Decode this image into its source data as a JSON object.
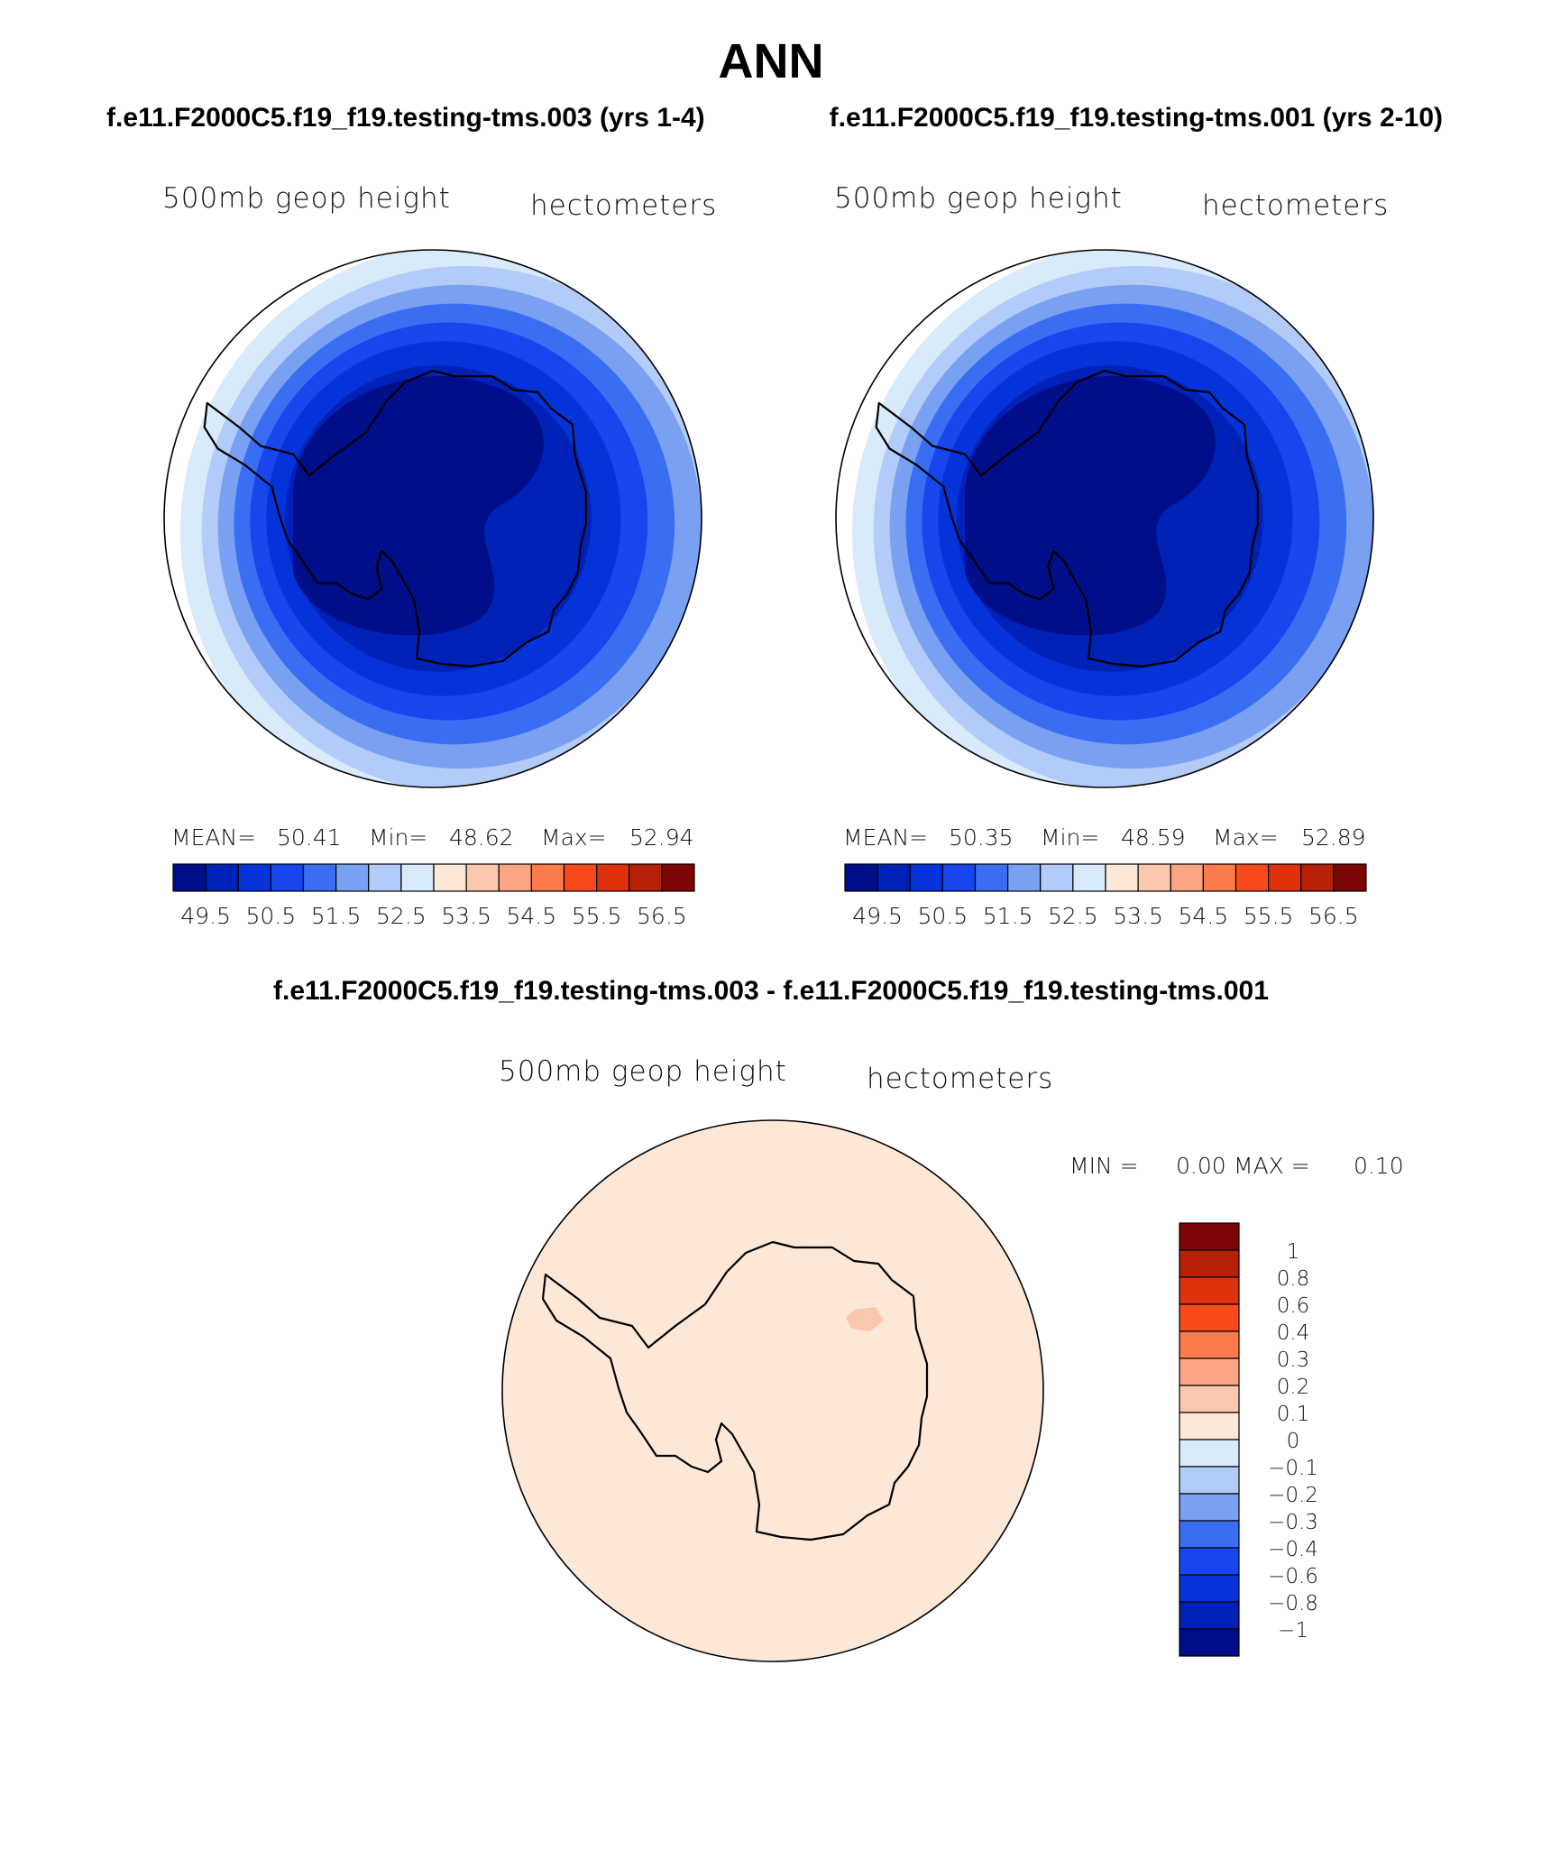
{
  "figure": {
    "title": "ANN",
    "case_a": "f.e11.F2000C5.f19_f19.testing-tms.003 (yrs 1-4)",
    "case_b": "f.e11.F2000C5.f19_f19.testing-tms.001 (yrs 2-10)",
    "diff_title": "f.e11.F2000C5.f19_f19.testing-tms.003 - f.e11.F2000C5.f19_f19.testing-tms.001"
  },
  "panels": [
    {
      "variable": "500mb geop height",
      "units": "hectometers",
      "mean_label": "MEAN=",
      "mean": "50.41",
      "min_label": "Min=",
      "min": "48.62",
      "max_label": "Max=",
      "max": "52.94"
    },
    {
      "variable": "500mb geop height",
      "units": "hectometers",
      "mean_label": "MEAN=",
      "mean": "50.35",
      "min_label": "Min=",
      "min": "48.59",
      "max_label": "Max=",
      "max": "52.89"
    }
  ],
  "diff_panel": {
    "variable": "500mb geop height",
    "units": "hectometers",
    "min_label": "MIN =",
    "min": "0.00",
    "max_label": "MAX =",
    "max": "0.10"
  },
  "colorbar_h": {
    "colors": [
      "#000e8a",
      "#0021b6",
      "#0533da",
      "#1746ef",
      "#3a6ef2",
      "#7aa0f2",
      "#b3cbf8",
      "#d9eafa",
      "#fde8d8",
      "#fcc8ad",
      "#fba583",
      "#fb7b4c",
      "#f94a1c",
      "#de320d",
      "#b52007",
      "#7c0506"
    ],
    "labels": [
      "49.5",
      "50.5",
      "51.5",
      "52.5",
      "53.5",
      "54.5",
      "55.5",
      "56.5"
    ]
  },
  "colorbar_v": {
    "colors_top_to_bottom": [
      "#7c0506",
      "#b52007",
      "#de320d",
      "#f94a1c",
      "#fb7b4c",
      "#fba583",
      "#fcc8ad",
      "#fde8d8",
      "#d9eafa",
      "#b3cbf8",
      "#7aa0f2",
      "#3a6ef2",
      "#1746ef",
      "#0533da",
      "#0021b6",
      "#000e8a"
    ],
    "labels": [
      "1",
      "0.8",
      "0.6",
      "0.4",
      "0.3",
      "0.2",
      "0.1",
      "0",
      "−0.1",
      "−0.2",
      "−0.3",
      "−0.4",
      "−0.6",
      "−0.8",
      "−1"
    ]
  },
  "map_colors": {
    "ring_colors_outer_to_inner": [
      "#d9eafa",
      "#b3cbf8",
      "#7aa0f2",
      "#3a6ef2",
      "#1746ef",
      "#0533da",
      "#0021b6"
    ],
    "core": "#000e8a",
    "diff_fill": "#fde8d8",
    "diff_patch": "#fcc8ad",
    "coast": "#000000"
  }
}
